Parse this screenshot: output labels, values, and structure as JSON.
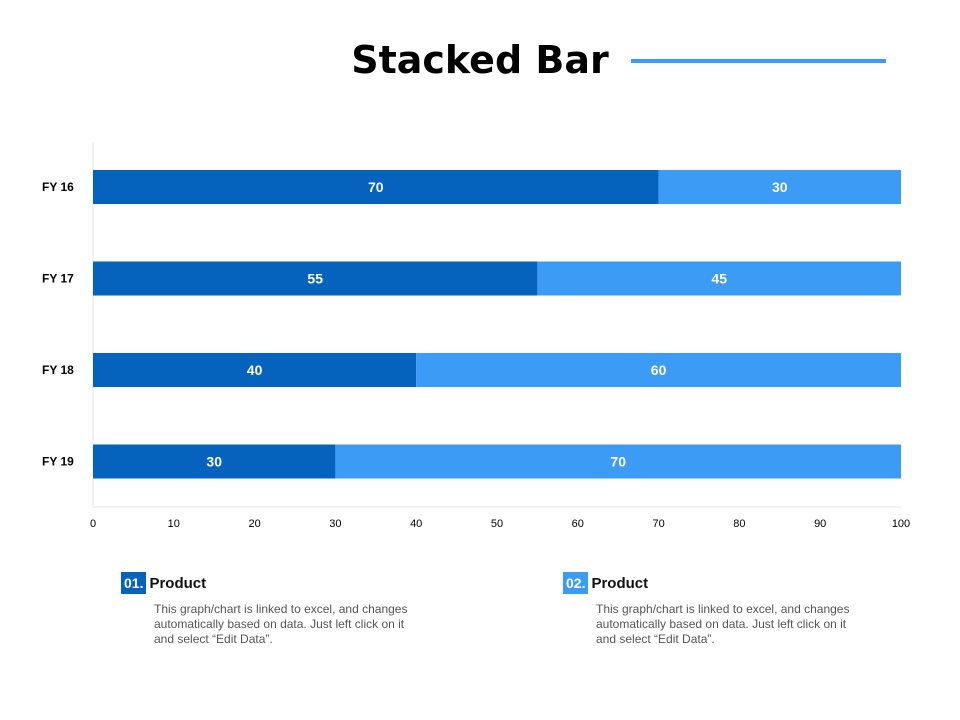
{
  "page": {
    "title": "Stacked Bar",
    "colors": {
      "accent_rule": "#3c9bf5"
    }
  },
  "chart_data": {
    "type": "bar",
    "orientation": "horizontal",
    "stacked": true,
    "categories": [
      "FY  16",
      "FY  17",
      "FY  18",
      "FY  19"
    ],
    "series": [
      {
        "name": "Product",
        "values": [
          70,
          55,
          40,
          30
        ],
        "color": "#0562bd",
        "label_color": "#ffffff"
      },
      {
        "name": "Product",
        "values": [
          30,
          45,
          60,
          70
        ],
        "color": "#3c9bf5",
        "label_color": "#ffffff"
      }
    ],
    "xlim": [
      0,
      100
    ],
    "xticks": [
      0,
      10,
      20,
      30,
      40,
      50,
      60,
      70,
      80,
      90,
      100
    ],
    "grid": false,
    "data_labels": true
  },
  "legend": [
    {
      "number": "01.",
      "title": "Product",
      "color": "#0562bd",
      "description": "This graph/chart is linked to excel, and changes automatically based on data. Just left click on it and select “Edit Data”."
    },
    {
      "number": "02.",
      "title": "Product",
      "color": "#3c9bf5",
      "description": "This graph/chart is linked to excel, and changes automatically based on data. Just left click on it and select “Edit Data”."
    }
  ]
}
